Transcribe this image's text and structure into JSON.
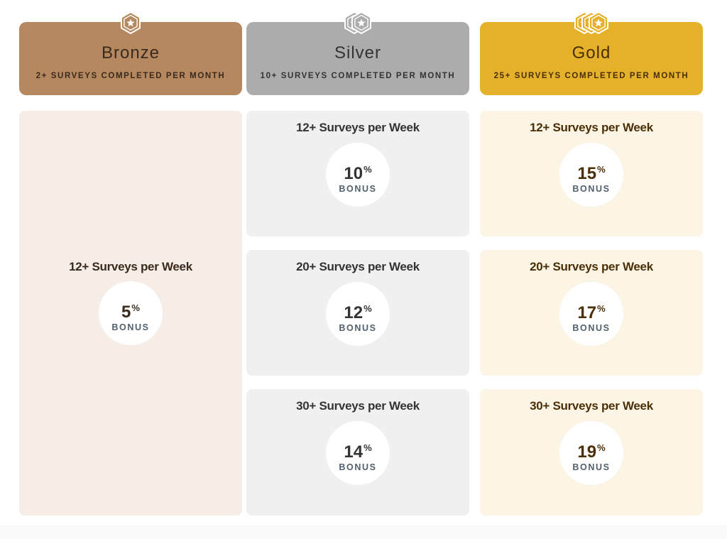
{
  "colors": {
    "bronze_header": "#b5885f",
    "bronze_text": "#3a2a1e",
    "bronze_card": "#f5ede6",
    "silver_header": "#acacac",
    "silver_text": "#333333",
    "silver_card": "#f0f0f0",
    "gold_header": "#e5b12b",
    "gold_text": "#4a2f06",
    "gold_card": "#fcf5e6",
    "bonus_label": "#52606d"
  },
  "tiers": [
    {
      "name": "Bronze",
      "requirement": "2+ SURVEYS COMPLETED PER MONTH",
      "badge_icon": "star-hexagon-icon",
      "stars": 1,
      "levels": [
        {
          "title": "12+ Surveys per Week",
          "bonus": "5",
          "percent": "%",
          "label": "BONUS"
        }
      ]
    },
    {
      "name": "Silver",
      "requirement": "10+ SURVEYS COMPLETED PER MONTH",
      "badge_icon": "star-hexagon-icon",
      "stars": 2,
      "levels": [
        {
          "title": "12+ Surveys per Week",
          "bonus": "10",
          "percent": "%",
          "label": "BONUS"
        },
        {
          "title": "20+ Surveys per Week",
          "bonus": "12",
          "percent": "%",
          "label": "BONUS"
        },
        {
          "title": "30+ Surveys per Week",
          "bonus": "14",
          "percent": "%",
          "label": "BONUS"
        }
      ]
    },
    {
      "name": "Gold",
      "requirement": "25+ SURVEYS COMPLETED PER MONTH",
      "badge_icon": "star-hexagon-icon",
      "stars": 3,
      "levels": [
        {
          "title": "12+ Surveys per Week",
          "bonus": "15",
          "percent": "%",
          "label": "BONUS"
        },
        {
          "title": "20+ Surveys per Week",
          "bonus": "17",
          "percent": "%",
          "label": "BONUS"
        },
        {
          "title": "30+ Surveys per Week",
          "bonus": "19",
          "percent": "%",
          "label": "BONUS"
        }
      ]
    }
  ]
}
